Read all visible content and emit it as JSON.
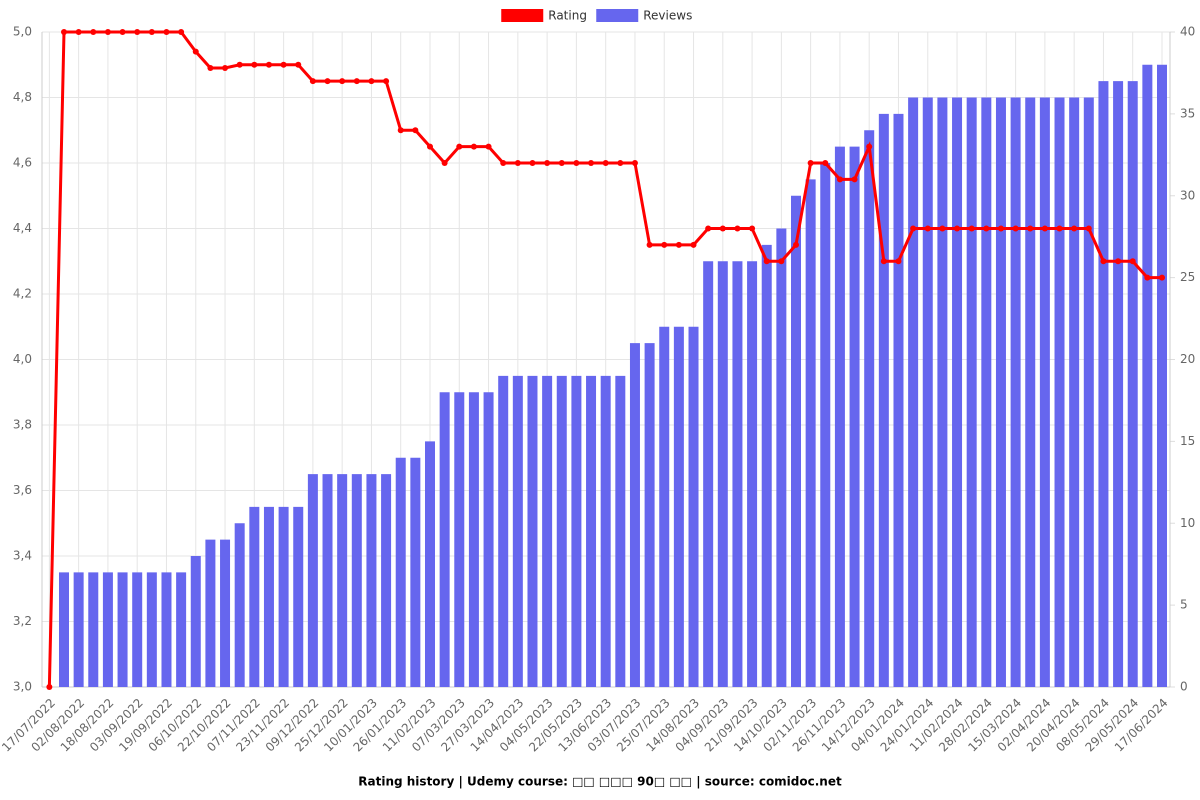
{
  "chart_data": {
    "type": "combo",
    "title": "Rating history | Udemy course: □□ □□□ 90□ □□ | source: comidoc.net",
    "categories": [
      "17/07/2022",
      null,
      "02/08/2022",
      null,
      "18/08/2022",
      null,
      "03/09/2022",
      null,
      "19/09/2022",
      null,
      "06/10/2022",
      null,
      "22/10/2022",
      null,
      "07/11/2022",
      null,
      "23/11/2022",
      null,
      "09/12/2022",
      null,
      "25/12/2022",
      null,
      "10/01/2023",
      null,
      "26/01/2023",
      null,
      "11/02/2023",
      null,
      "07/03/2023",
      null,
      "27/03/2023",
      null,
      "14/04/2023",
      null,
      "04/05/2023",
      null,
      "22/05/2023",
      null,
      "13/06/2023",
      null,
      "03/07/2023",
      null,
      "25/07/2023",
      null,
      "14/08/2023",
      null,
      "04/09/2023",
      null,
      "21/09/2023",
      null,
      "14/10/2023",
      null,
      "02/11/2023",
      null,
      "26/11/2023",
      null,
      "14/12/2023",
      null,
      "04/01/2024",
      null,
      "24/01/2024",
      null,
      "11/02/2024",
      null,
      "28/02/2024",
      null,
      "15/03/2024",
      null,
      "02/04/2024",
      null,
      "20/04/2024",
      null,
      "08/05/2024",
      null,
      "29/05/2024",
      null,
      "17/06/2024"
    ],
    "series": [
      {
        "name": "Rating",
        "type": "line",
        "axis": "y",
        "color": "#ff0000",
        "values": [
          3.0,
          5.0,
          5.0,
          5.0,
          5.0,
          5.0,
          5.0,
          5.0,
          5.0,
          5.0,
          4.94,
          4.89,
          4.89,
          4.9,
          4.9,
          4.9,
          4.9,
          4.9,
          4.85,
          4.85,
          4.85,
          4.85,
          4.85,
          4.85,
          4.7,
          4.7,
          4.65,
          4.6,
          4.65,
          4.65,
          4.65,
          4.6,
          4.6,
          4.6,
          4.6,
          4.6,
          4.6,
          4.6,
          4.6,
          4.6,
          4.6,
          4.35,
          4.35,
          4.35,
          4.35,
          4.4,
          4.4,
          4.4,
          4.4,
          4.3,
          4.3,
          4.35,
          4.6,
          4.6,
          4.55,
          4.55,
          4.65,
          4.3,
          4.3,
          4.4,
          4.4,
          4.4,
          4.4,
          4.4,
          4.4,
          4.4,
          4.4,
          4.4,
          4.4,
          4.4,
          4.4,
          4.4,
          4.3,
          4.3,
          4.3,
          4.25,
          4.25
        ]
      },
      {
        "name": "Reviews",
        "type": "bar",
        "axis": "y2",
        "color": "#6666ee",
        "values": [
          0,
          7,
          7,
          7,
          7,
          7,
          7,
          7,
          7,
          7,
          8,
          9,
          9,
          10,
          11,
          11,
          11,
          11,
          13,
          13,
          13,
          13,
          13,
          13,
          14,
          14,
          15,
          18,
          18,
          18,
          18,
          19,
          19,
          19,
          19,
          19,
          19,
          19,
          19,
          19,
          21,
          21,
          22,
          22,
          22,
          26,
          26,
          26,
          26,
          27,
          28,
          30,
          31,
          32,
          33,
          33,
          34,
          35,
          35,
          36,
          36,
          36,
          36,
          36,
          36,
          36,
          36,
          36,
          36,
          36,
          36,
          36,
          37,
          37,
          37,
          38,
          38
        ]
      }
    ],
    "ylim": [
      3.0,
      5.0
    ],
    "yticks": [
      {
        "value": 3.0,
        "label": "3,0"
      },
      {
        "value": 3.2,
        "label": "3,2"
      },
      {
        "value": 3.4,
        "label": "3,4"
      },
      {
        "value": 3.6,
        "label": "3,6"
      },
      {
        "value": 3.8,
        "label": "3,8"
      },
      {
        "value": 4.0,
        "label": "4,0"
      },
      {
        "value": 4.2,
        "label": "4,2"
      },
      {
        "value": 4.4,
        "label": "4,4"
      },
      {
        "value": 4.6,
        "label": "4,6"
      },
      {
        "value": 4.8,
        "label": "4,8"
      },
      {
        "value": 5.0,
        "label": "5,0"
      }
    ],
    "y2lim": [
      0,
      40
    ],
    "y2ticks": [
      0,
      5,
      10,
      15,
      20,
      25,
      30,
      35,
      40
    ],
    "grid": true,
    "legend": "top"
  }
}
